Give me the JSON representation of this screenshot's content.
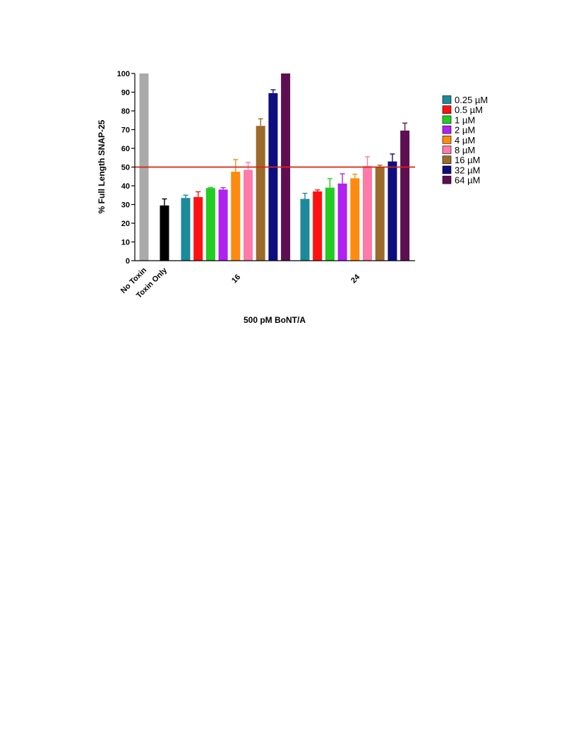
{
  "chart_data": {
    "type": "bar",
    "ylabel": "% Full Length SNAP-25",
    "xlabel": "500 pM BoNT/A",
    "ylim": [
      0,
      100
    ],
    "yticks": [
      0,
      10,
      20,
      30,
      40,
      50,
      60,
      70,
      80,
      90,
      100
    ],
    "reference_line": {
      "y": 50,
      "color": "#dd2211"
    },
    "controls": [
      {
        "label": "No Toxin",
        "value": 100,
        "error": 0,
        "color": "#aaaaaa"
      },
      {
        "label": "Toxin Only",
        "value": 29.5,
        "error": 3.5,
        "color": "#000000"
      }
    ],
    "groups": [
      {
        "label": "16",
        "values": [
          33.5,
          34,
          38.8,
          38,
          47.5,
          48.5,
          72,
          89.5,
          100
        ],
        "errors": [
          1.5,
          2.8,
          0.3,
          1,
          6.5,
          4,
          3.8,
          1.8,
          0
        ]
      },
      {
        "label": "24",
        "values": [
          33,
          37,
          39,
          41.2,
          44,
          50.5,
          50,
          53,
          69.5
        ],
        "errors": [
          3,
          0.8,
          4.8,
          5.2,
          2.2,
          5,
          1,
          4,
          4
        ]
      }
    ],
    "series": [
      {
        "name": "0.25 µM",
        "color": "#1b8a9a"
      },
      {
        "name": "0.5 µM",
        "color": "#ff1111"
      },
      {
        "name": "1 µM",
        "color": "#22cc22"
      },
      {
        "name": "2 µM",
        "color": "#b022f0"
      },
      {
        "name": "4 µM",
        "color": "#ff8a10"
      },
      {
        "name": "8 µM",
        "color": "#ff7aa8"
      },
      {
        "name": "16 µM",
        "color": "#9c6a2a"
      },
      {
        "name": "32 µM",
        "color": "#0e0e80"
      },
      {
        "name": "64 µM",
        "color": "#5e0f52"
      }
    ],
    "legend_position": "right",
    "grid": false
  }
}
